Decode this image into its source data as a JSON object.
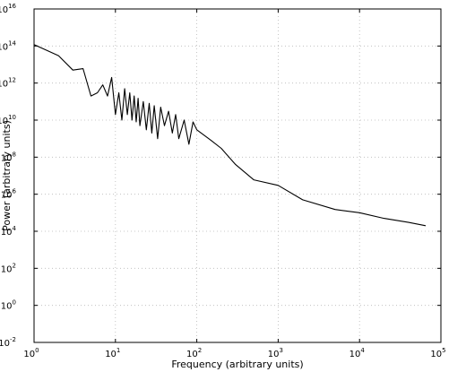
{
  "chart_data": {
    "type": "line",
    "xlabel": "Frequency (arbitrary units)",
    "ylabel": "Power (arbitrary units)",
    "x_scale": "log",
    "y_scale": "log",
    "xlim": [
      1,
      100000
    ],
    "ylim": [
      0.01,
      10000000000000000
    ],
    "grid": true,
    "line_color": "#000000",
    "x_ticks": [
      {
        "base": "10",
        "exp": "0",
        "value": 1
      },
      {
        "base": "10",
        "exp": "1",
        "value": 10
      },
      {
        "base": "10",
        "exp": "2",
        "value": 100
      },
      {
        "base": "10",
        "exp": "3",
        "value": 1000
      },
      {
        "base": "10",
        "exp": "4",
        "value": 10000
      },
      {
        "base": "10",
        "exp": "5",
        "value": 100000
      }
    ],
    "y_ticks": [
      {
        "base": "10",
        "exp": "-2",
        "value": 0.01
      },
      {
        "base": "10",
        "exp": "0",
        "value": 1
      },
      {
        "base": "10",
        "exp": "2",
        "value": 100
      },
      {
        "base": "10",
        "exp": "4",
        "value": 10000
      },
      {
        "base": "10",
        "exp": "6",
        "value": 1000000
      },
      {
        "base": "10",
        "exp": "8",
        "value": 100000000
      },
      {
        "base": "10",
        "exp": "10",
        "value": 10000000000
      },
      {
        "base": "10",
        "exp": "12",
        "value": 1000000000000
      },
      {
        "base": "10",
        "exp": "14",
        "value": 100000000000000
      },
      {
        "base": "10",
        "exp": "16",
        "value": 10000000000000000
      }
    ],
    "series": [
      {
        "x": [
          1,
          2,
          3,
          4,
          5,
          6,
          7,
          8,
          9,
          10,
          11,
          12,
          13,
          14,
          15,
          16,
          17,
          18,
          19,
          20,
          22,
          24,
          26,
          28,
          30,
          33,
          36,
          40,
          45,
          50,
          55,
          60,
          70,
          80,
          90,
          100,
          150,
          200,
          300,
          500,
          1000,
          2000,
          5000,
          10000,
          20000,
          40000,
          65000
        ],
        "y": [
          120000000000000.0,
          30000000000000.0,
          5000000000000.0,
          6000000000000.0,
          200000000000.0,
          300000000000.0,
          800000000000.0,
          200000000000.0,
          2000000000000.0,
          20000000000.0,
          300000000000.0,
          10000000000.0,
          500000000000.0,
          20000000000.0,
          300000000000.0,
          10000000000.0,
          200000000000.0,
          8000000000.0,
          150000000000.0,
          5000000000.0,
          100000000000.0,
          3000000000.0,
          80000000000.0,
          2000000000.0,
          60000000000.0,
          1000000000.0,
          50000000000.0,
          5000000000.0,
          30000000000.0,
          2000000000.0,
          20000000000.0,
          1000000000.0,
          10000000000.0,
          500000000.0,
          8000000000.0,
          3000000000.0,
          800000000.0,
          300000000.0,
          40000000.0,
          6000000.0,
          3000000.0,
          500000.0,
          150000.0,
          100000.0,
          50000.0,
          30000.0,
          20000.0
        ]
      }
    ]
  }
}
